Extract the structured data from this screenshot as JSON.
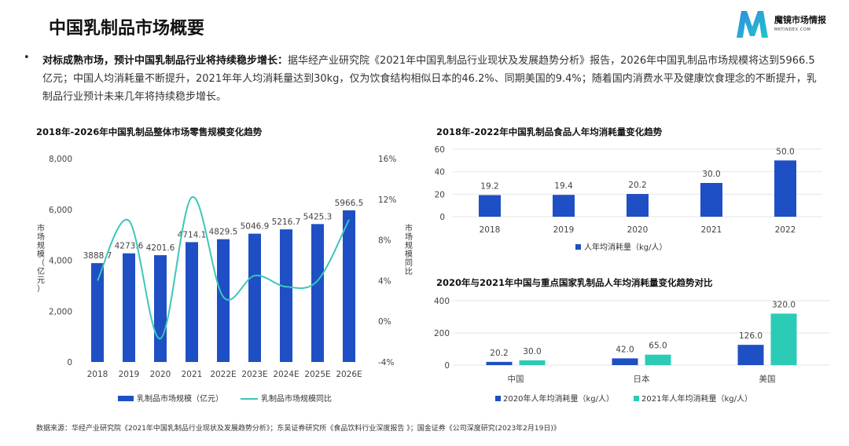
{
  "header": {
    "title": "中国乳制品市场概要",
    "logo_name": "魔镜市场情报",
    "logo_sub": "MKTINDEX.COM"
  },
  "summary": {
    "bullet": "•",
    "lead": "对标成熟市场，预计中国乳制品行业将持续稳步增长：",
    "body": "据华经产业研究院《2021年中国乳制品行业现状及发展趋势分析》报告，2026年中国乳制品市场规模将达到5966.5亿元；中国人均消耗量不断提升，2021年年人均消耗量达到30kg，仅为饮食结构相似日本的46.2%、同期美国的9.4%；随着国内消费水平及健康饮食理念的不断提升，乳制品行业预计未来几年将持续稳步增长。"
  },
  "source": "数据来源：华经产业研究院《2021年中国乳制品行业现状及发展趋势分析》；东吴证券研究所《食品饮料行业深度报告 》；国金证券《公司深度研究(2023年2月19日)》",
  "colors": {
    "bar_blue": "#1f4fc4",
    "line_teal": "#3cc7b8",
    "bar_teal": "#2ccbb5"
  },
  "chart_data": [
    {
      "type": "bar",
      "title": "2018年-2026年中国乳制品整体市场零售规模变化趋势",
      "categories": [
        "2018",
        "2019",
        "2020",
        "2021",
        "2022E",
        "2023E",
        "2024E",
        "2025E",
        "2026E"
      ],
      "series": [
        {
          "name": "乳制品市场规模（亿元）",
          "type": "bar",
          "axis": "left",
          "values": [
            3888.7,
            4273.6,
            4201.6,
            4714.1,
            4829.5,
            5046.9,
            5216.7,
            5425.3,
            5966.5
          ],
          "labels": [
            "3888.7",
            "4273.6",
            "4201.6",
            "4714.1",
            "4829.5",
            "5046.9",
            "5216.7",
            "5425.3",
            "5966.5"
          ]
        },
        {
          "name": "乳制品市场规模同比",
          "type": "line",
          "axis": "right",
          "values": [
            4.0,
            9.9,
            -1.7,
            12.2,
            2.4,
            4.5,
            3.4,
            4.0,
            10.0
          ]
        }
      ],
      "ylabel_left": "市场规模（亿元）",
      "ylabel_right": "市场规模同比",
      "ylim_left": [
        0,
        8000
      ],
      "yticks_left": [
        "0",
        "2,000",
        "4,000",
        "6,000",
        "8,000"
      ],
      "ylim_right": [
        -4,
        16
      ],
      "yticks_right": [
        "-4%",
        "0%",
        "4%",
        "8%",
        "12%",
        "16%"
      ],
      "legend": "bottom",
      "grid": false
    },
    {
      "type": "bar",
      "title": "2018年-2022年中国乳制品食品人年均消耗量变化趋势",
      "categories": [
        "2018",
        "2019",
        "2020",
        "2021",
        "2022"
      ],
      "series": [
        {
          "name": "人年均消耗量（kg/人）",
          "values": [
            19.2,
            19.4,
            20.2,
            30.0,
            50.0
          ],
          "labels": [
            "19.2",
            "19.4",
            "20.2",
            "30.0",
            "50.0"
          ]
        }
      ],
      "ylim": [
        0,
        60
      ],
      "yticks": [
        "0",
        "20",
        "40",
        "60"
      ],
      "legend": "bottom",
      "grid": true
    },
    {
      "type": "bar",
      "title": "2020年与2021年中国与重点国家乳制品人年均消耗量变化趋势对比",
      "categories": [
        "中国",
        "日本",
        "美国"
      ],
      "series": [
        {
          "name": "2020年人年均消耗量（kg/人）",
          "values": [
            20.2,
            42.0,
            126.0
          ],
          "labels": [
            "20.2",
            "42.0",
            "126.0"
          ]
        },
        {
          "name": "2021年人年均消耗量（kg/人）",
          "values": [
            30.0,
            65.0,
            320.0
          ],
          "labels": [
            "30.0",
            "65.0",
            "320.0"
          ]
        }
      ],
      "ylim": [
        0,
        400
      ],
      "yticks": [
        "0",
        "200",
        "400"
      ],
      "legend": "bottom",
      "grid": true
    }
  ]
}
